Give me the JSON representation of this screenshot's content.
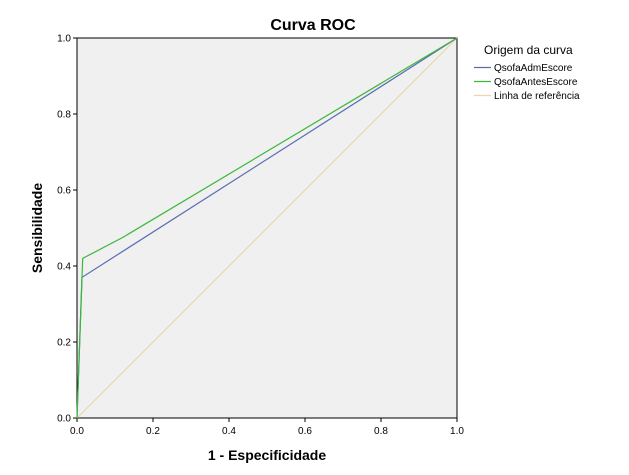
{
  "chart_data": {
    "type": "line",
    "title": "Curva ROC",
    "xlabel": "1 - Especificidade",
    "ylabel": "Sensibilidade",
    "xlim": [
      0,
      1
    ],
    "ylim": [
      0,
      1
    ],
    "xticks": [
      "0.0",
      "0.2",
      "0.4",
      "0.6",
      "0.8",
      "1.0"
    ],
    "yticks": [
      "0.0",
      "0.2",
      "0.4",
      "0.6",
      "0.8",
      "1.0"
    ],
    "grid": false,
    "legend": {
      "title": "Origem da curva",
      "placement": "right"
    },
    "series": [
      {
        "name": "QsofaAdmEscore",
        "color": "#5a6bb5",
        "x": [
          0.0,
          0.0,
          0.013,
          1.0
        ],
        "y": [
          0.0,
          0.0,
          0.37,
          1.0
        ]
      },
      {
        "name": "QsofaAntesEscore",
        "color": "#3ab83a",
        "x": [
          0.0,
          0.0,
          0.015,
          0.12,
          1.0
        ],
        "y": [
          0.0,
          0.0,
          0.42,
          0.475,
          1.0
        ]
      },
      {
        "name": "Linha de referência",
        "color": "#e8d8b0",
        "x": [
          0.0,
          1.0
        ],
        "y": [
          0.0,
          1.0
        ]
      }
    ]
  }
}
